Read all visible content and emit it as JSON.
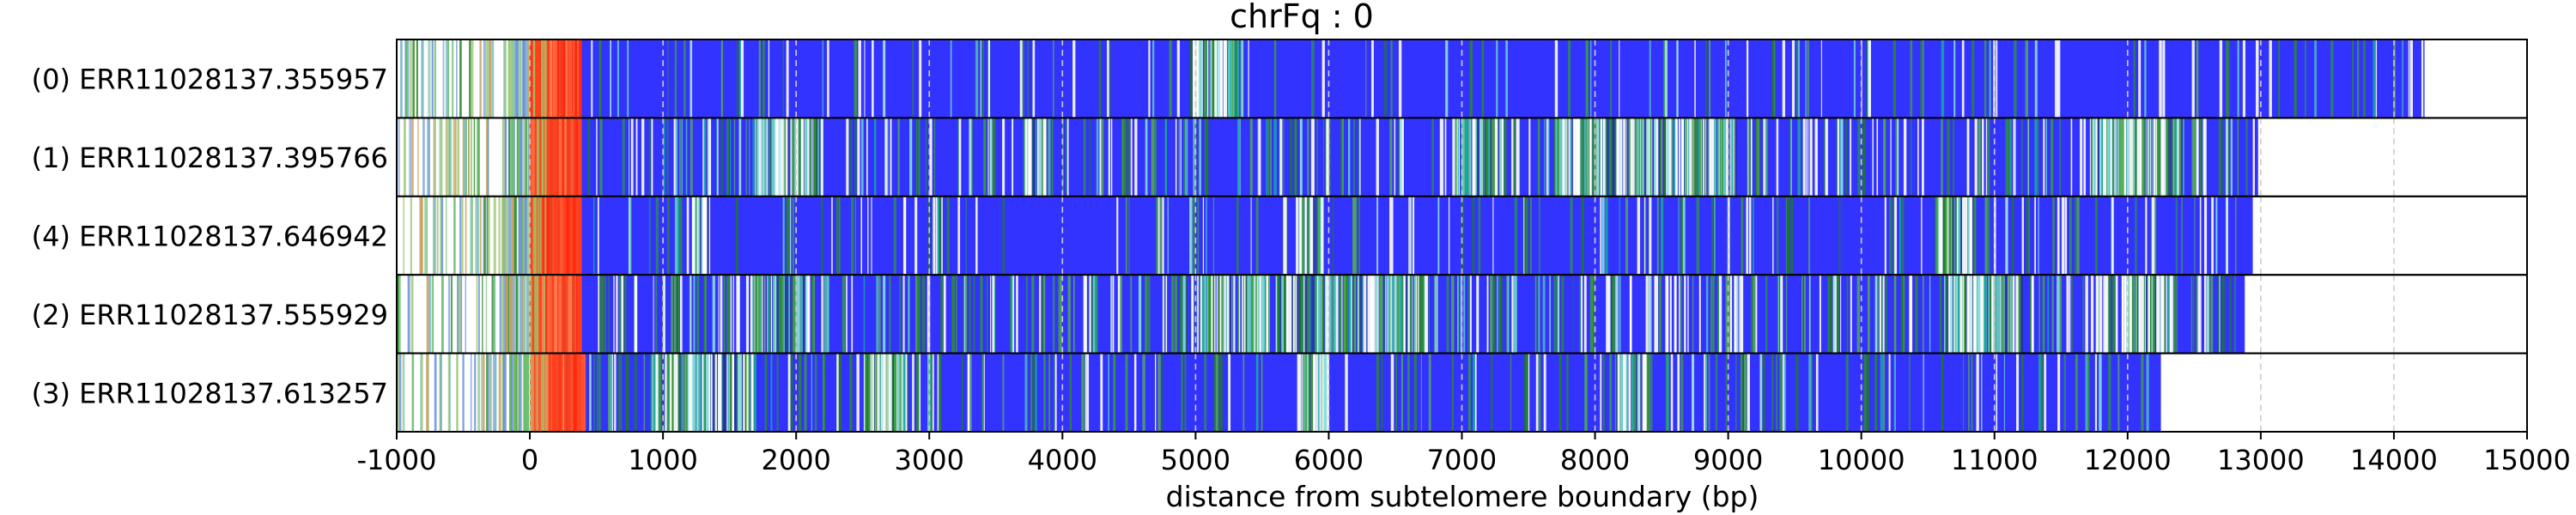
{
  "chart_data": {
    "type": "heatmap",
    "title": "chrFq : 0",
    "xlabel": "distance from subtelomere boundary (bp)",
    "ylabel": "",
    "xlim": [
      -1000,
      15000
    ],
    "x_ticks": [
      -1000,
      0,
      1000,
      2000,
      3000,
      4000,
      5000,
      6000,
      7000,
      8000,
      9000,
      10000,
      11000,
      12000,
      13000,
      14000,
      15000
    ],
    "x_tick_labels": [
      "-1000",
      "0",
      "1000",
      "2000",
      "3000",
      "4000",
      "5000",
      "6000",
      "7000",
      "8000",
      "9000",
      "10000",
      "11000",
      "12000",
      "13000",
      "14000",
      "15000"
    ],
    "grid": "vertical dashed lines every 1000 bp",
    "colors": {
      "telomere_repeat": "#3333ff",
      "subtelomere": "#ff4422",
      "variant_green": "#2a8a2a",
      "variant_cyan": "#66cccc",
      "gap_white": "#ffffff",
      "grid": "#cccccc",
      "frame": "#000000"
    },
    "reads": [
      {
        "label": "(0) ERR11028137.355957",
        "start": -1000,
        "end": 14230,
        "orange_start": 0,
        "orange_end": 390,
        "dense_regions": [
          [
            4950,
            5350
          ]
        ],
        "green_density": 0.04,
        "white_density": 0.05
      },
      {
        "label": "(1) ERR11028137.395766",
        "start": -1000,
        "end": 12980,
        "orange_start": 0,
        "orange_end": 390,
        "dense_regions": [
          [
            1700,
            2200
          ],
          [
            3700,
            3900
          ],
          [
            6950,
            7300
          ],
          [
            7700,
            9050
          ],
          [
            11700,
            12400
          ]
        ],
        "green_density": 0.12,
        "white_density": 0.12
      },
      {
        "label": "(4) ERR11028137.646942",
        "start": -1000,
        "end": 12940,
        "orange_start": 0,
        "orange_end": 390,
        "dense_regions": [
          [
            1200,
            1350
          ],
          [
            5750,
            5950
          ],
          [
            10550,
            10850
          ]
        ],
        "green_density": 0.06,
        "white_density": 0.06
      },
      {
        "label": "(2) ERR11028137.555929",
        "start": -1000,
        "end": 12880,
        "orange_start": 0,
        "orange_end": 390,
        "dense_regions": [
          [
            1650,
            2100
          ],
          [
            5000,
            5550
          ],
          [
            5600,
            6700
          ],
          [
            10650,
            11200
          ],
          [
            11950,
            12300
          ]
        ],
        "green_density": 0.16,
        "white_density": 0.12
      },
      {
        "label": "(3) ERR11028137.613257",
        "start": -1000,
        "end": 12250,
        "orange_start": 0,
        "orange_end": 420,
        "dense_regions": [
          [
            900,
            1700
          ],
          [
            2500,
            2850
          ],
          [
            5800,
            6000
          ],
          [
            8150,
            8400
          ]
        ],
        "green_density": 0.1,
        "white_density": 0.06
      }
    ]
  }
}
